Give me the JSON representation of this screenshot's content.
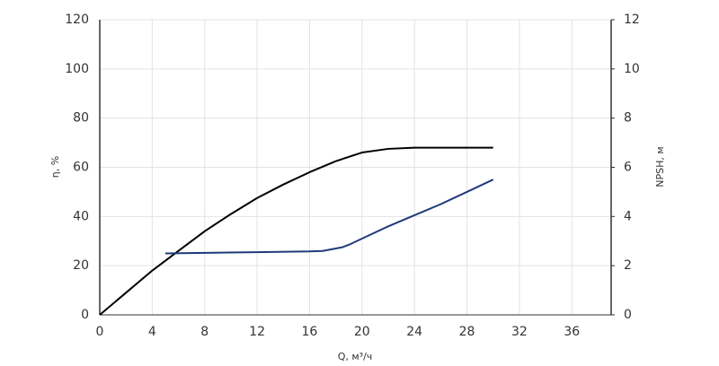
{
  "chart_data": {
    "type": "line",
    "xlabel": "Q, м³/ч",
    "ylabel": "η, %",
    "y2label": "NPSH, м",
    "xlim": [
      0,
      39
    ],
    "xticks": [
      0,
      4,
      8,
      12,
      16,
      20,
      24,
      28,
      32,
      36
    ],
    "ylim": [
      0,
      120
    ],
    "yticks": [
      0,
      20,
      40,
      60,
      80,
      100,
      120
    ],
    "y2lim": [
      0,
      12
    ],
    "y2ticks": [
      0,
      2,
      4,
      6,
      8,
      10,
      12
    ],
    "grid": true,
    "series": [
      {
        "color": "#000000",
        "axis": "y",
        "x": [
          0,
          2,
          4,
          6,
          8,
          10,
          12,
          14,
          16,
          18,
          20,
          22,
          24,
          26,
          28,
          30
        ],
        "values": [
          0,
          9,
          18,
          26,
          34,
          41,
          47.5,
          53,
          58,
          62.5,
          66,
          67.5,
          68,
          68,
          68,
          68
        ]
      },
      {
        "color": "#1f3a7a",
        "axis": "y2",
        "x": [
          5,
          8,
          12,
          16,
          17,
          18,
          18.5,
          19,
          20,
          22,
          24,
          26,
          28,
          30
        ],
        "values": [
          2.5,
          2.52,
          2.55,
          2.58,
          2.6,
          2.7,
          2.75,
          2.85,
          3.1,
          3.6,
          4.05,
          4.5,
          5.0,
          5.5
        ]
      }
    ]
  }
}
